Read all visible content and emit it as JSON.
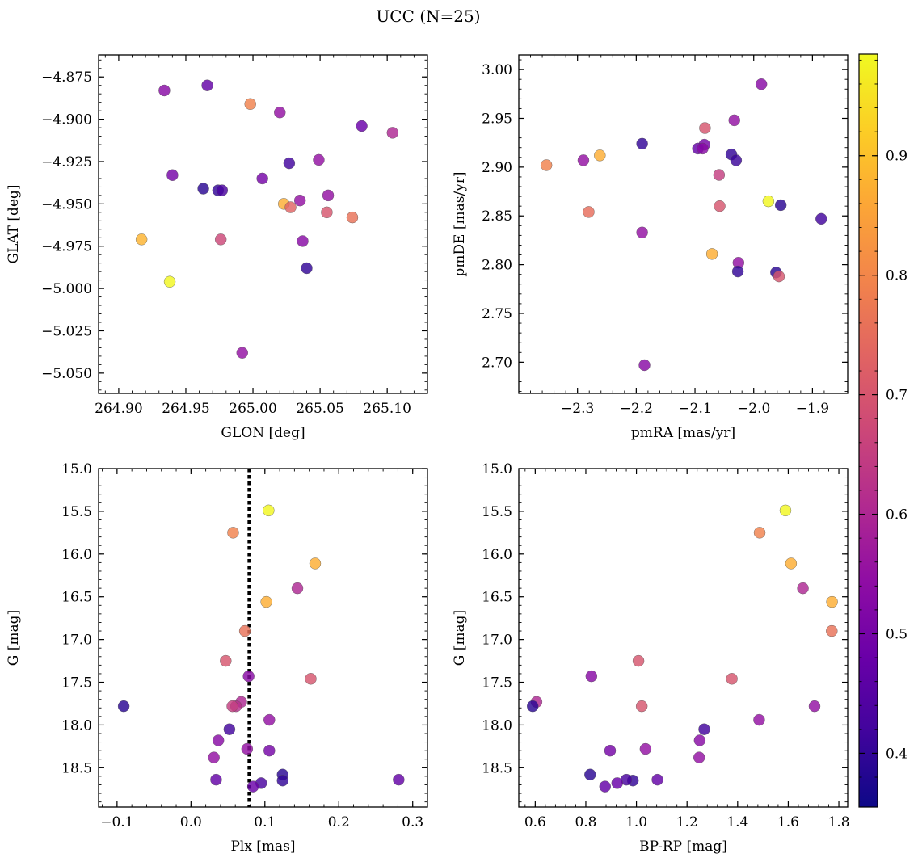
{
  "title": "UCC (N=25)",
  "colorbar": {
    "cmap": "plasma",
    "range": [
      0.355,
      0.985
    ],
    "ticks": [
      0.4,
      0.5,
      0.6,
      0.7,
      0.8,
      0.9
    ],
    "tick_labels": [
      "0.4",
      "0.5",
      "0.6",
      "0.7",
      "0.8",
      "0.9"
    ]
  },
  "chart_data": [
    {
      "type": "scatter",
      "xlabel": "GLON [deg]",
      "ylabel": "GLAT [deg]",
      "xlim": [
        264.885,
        265.13
      ],
      "ylim": [
        -5.062,
        -4.862
      ],
      "xticks": [
        264.9,
        264.95,
        265.0,
        265.05,
        265.1
      ],
      "xtick_labels": [
        "264.90",
        "264.95",
        "265.00",
        "265.05",
        "265.10"
      ],
      "yticks": [
        -4.875,
        -4.9,
        -4.925,
        -4.95,
        -4.975,
        -5.0,
        -5.025,
        -5.05
      ],
      "ytick_labels": [
        "−4.875",
        "−4.900",
        "−4.925",
        "−4.950",
        "−4.975",
        "−5.000",
        "−5.025",
        "−5.050"
      ],
      "points": [
        {
          "x": 264.934,
          "y": -4.883,
          "c": 0.53
        },
        {
          "x": 264.966,
          "y": -4.88,
          "c": 0.47
        },
        {
          "x": 264.998,
          "y": -4.891,
          "c": 0.79
        },
        {
          "x": 265.02,
          "y": -4.896,
          "c": 0.55
        },
        {
          "x": 265.081,
          "y": -4.904,
          "c": 0.48
        },
        {
          "x": 265.104,
          "y": -4.908,
          "c": 0.6
        },
        {
          "x": 264.94,
          "y": -4.933,
          "c": 0.5
        },
        {
          "x": 265.027,
          "y": -4.926,
          "c": 0.42
        },
        {
          "x": 265.049,
          "y": -4.924,
          "c": 0.55
        },
        {
          "x": 265.007,
          "y": -4.935,
          "c": 0.5
        },
        {
          "x": 264.963,
          "y": -4.941,
          "c": 0.39
        },
        {
          "x": 264.974,
          "y": -4.942,
          "c": 0.4
        },
        {
          "x": 264.977,
          "y": -4.942,
          "c": 0.43
        },
        {
          "x": 265.056,
          "y": -4.945,
          "c": 0.55
        },
        {
          "x": 265.035,
          "y": -4.948,
          "c": 0.55
        },
        {
          "x": 265.023,
          "y": -4.95,
          "c": 0.87
        },
        {
          "x": 265.028,
          "y": -4.952,
          "c": 0.73
        },
        {
          "x": 265.055,
          "y": -4.955,
          "c": 0.7
        },
        {
          "x": 265.074,
          "y": -4.958,
          "c": 0.76
        },
        {
          "x": 264.917,
          "y": -4.971,
          "c": 0.88
        },
        {
          "x": 264.976,
          "y": -4.971,
          "c": 0.67
        },
        {
          "x": 265.037,
          "y": -4.972,
          "c": 0.53
        },
        {
          "x": 265.04,
          "y": -4.988,
          "c": 0.4
        },
        {
          "x": 264.938,
          "y": -4.996,
          "c": 0.98
        },
        {
          "x": 264.992,
          "y": -5.038,
          "c": 0.55
        }
      ]
    },
    {
      "type": "scatter",
      "xlabel": "pmRA [mas/yr]",
      "ylabel": "pmDE [mas/yr]",
      "xlim": [
        -2.4,
        -1.84
      ],
      "ylim": [
        2.668,
        3.015
      ],
      "xticks": [
        -2.3,
        -2.2,
        -2.1,
        -2.0,
        -1.9
      ],
      "xtick_labels": [
        "−2.3",
        "−2.2",
        "−2.1",
        "−2.0",
        "−1.9"
      ],
      "yticks": [
        2.7,
        2.75,
        2.8,
        2.85,
        2.9,
        2.95,
        3.0
      ],
      "ytick_labels": [
        "2.70",
        "2.75",
        "2.80",
        "2.85",
        "2.90",
        "2.95",
        "3.00"
      ],
      "points": [
        {
          "x": -1.987,
          "y": 2.985,
          "c": 0.53
        },
        {
          "x": -2.033,
          "y": 2.948,
          "c": 0.55
        },
        {
          "x": -2.083,
          "y": 2.94,
          "c": 0.7
        },
        {
          "x": -2.19,
          "y": 2.924,
          "c": 0.4
        },
        {
          "x": -2.084,
          "y": 2.923,
          "c": 0.5
        },
        {
          "x": -2.095,
          "y": 2.919,
          "c": 0.47
        },
        {
          "x": -2.087,
          "y": 2.919,
          "c": 0.53
        },
        {
          "x": -2.038,
          "y": 2.913,
          "c": 0.4
        },
        {
          "x": -2.03,
          "y": 2.907,
          "c": 0.41
        },
        {
          "x": -2.262,
          "y": 2.912,
          "c": 0.87
        },
        {
          "x": -2.29,
          "y": 2.907,
          "c": 0.55
        },
        {
          "x": -2.353,
          "y": 2.902,
          "c": 0.79
        },
        {
          "x": -2.059,
          "y": 2.892,
          "c": 0.65
        },
        {
          "x": -1.975,
          "y": 2.865,
          "c": 0.98
        },
        {
          "x": -1.954,
          "y": 2.861,
          "c": 0.39
        },
        {
          "x": -2.058,
          "y": 2.86,
          "c": 0.7
        },
        {
          "x": -2.281,
          "y": 2.854,
          "c": 0.75
        },
        {
          "x": -1.885,
          "y": 2.847,
          "c": 0.42
        },
        {
          "x": -2.19,
          "y": 2.833,
          "c": 0.55
        },
        {
          "x": -2.071,
          "y": 2.811,
          "c": 0.87
        },
        {
          "x": -2.026,
          "y": 2.802,
          "c": 0.55
        },
        {
          "x": -2.027,
          "y": 2.793,
          "c": 0.4
        },
        {
          "x": -1.962,
          "y": 2.792,
          "c": 0.39
        },
        {
          "x": -1.957,
          "y": 2.788,
          "c": 0.7
        },
        {
          "x": -2.186,
          "y": 2.697,
          "c": 0.53
        }
      ]
    },
    {
      "type": "scatter",
      "xlabel": "Plx [mas]",
      "ylabel": "G [mag]",
      "xlim": [
        -0.125,
        0.32
      ],
      "ylim": [
        18.96,
        15.0
      ],
      "y_inverted": true,
      "xticks": [
        -0.1,
        0.0,
        0.1,
        0.2,
        0.3
      ],
      "xtick_labels": [
        "−0.1",
        "0.0",
        "0.1",
        "0.2",
        "0.3"
      ],
      "yticks": [
        15.0,
        15.5,
        16.0,
        16.5,
        17.0,
        17.5,
        18.0,
        18.5
      ],
      "ytick_labels": [
        "15.0",
        "15.5",
        "16.0",
        "16.5",
        "17.0",
        "17.5",
        "18.0",
        "18.5"
      ],
      "vline": {
        "x": 0.079,
        "style": "dotted"
      },
      "points": [
        {
          "x": 0.105,
          "y": 15.49,
          "c": 0.98
        },
        {
          "x": 0.057,
          "y": 15.75,
          "c": 0.79
        },
        {
          "x": 0.168,
          "y": 16.11,
          "c": 0.87
        },
        {
          "x": 0.144,
          "y": 16.4,
          "c": 0.6
        },
        {
          "x": 0.102,
          "y": 16.56,
          "c": 0.87
        },
        {
          "x": 0.073,
          "y": 16.9,
          "c": 0.76
        },
        {
          "x": 0.047,
          "y": 17.25,
          "c": 0.7
        },
        {
          "x": 0.162,
          "y": 17.46,
          "c": 0.7
        },
        {
          "x": 0.078,
          "y": 17.43,
          "c": 0.53
        },
        {
          "x": -0.091,
          "y": 17.78,
          "c": 0.39
        },
        {
          "x": 0.068,
          "y": 17.73,
          "c": 0.6
        },
        {
          "x": 0.061,
          "y": 17.78,
          "c": 0.62
        },
        {
          "x": 0.056,
          "y": 17.78,
          "c": 0.65
        },
        {
          "x": 0.106,
          "y": 17.94,
          "c": 0.55
        },
        {
          "x": 0.052,
          "y": 18.05,
          "c": 0.42
        },
        {
          "x": 0.037,
          "y": 18.18,
          "c": 0.53
        },
        {
          "x": 0.106,
          "y": 18.3,
          "c": 0.5
        },
        {
          "x": 0.076,
          "y": 18.28,
          "c": 0.55
        },
        {
          "x": 0.031,
          "y": 18.38,
          "c": 0.55
        },
        {
          "x": 0.124,
          "y": 18.58,
          "c": 0.39
        },
        {
          "x": 0.124,
          "y": 18.65,
          "c": 0.4
        },
        {
          "x": 0.034,
          "y": 18.64,
          "c": 0.47
        },
        {
          "x": 0.095,
          "y": 18.68,
          "c": 0.43
        },
        {
          "x": 0.084,
          "y": 18.72,
          "c": 0.48
        },
        {
          "x": 0.281,
          "y": 18.64,
          "c": 0.47
        }
      ]
    },
    {
      "type": "scatter",
      "xlabel": "BP-RP [mag]",
      "ylabel": "G [mag]",
      "xlim": [
        0.535,
        1.835
      ],
      "ylim": [
        18.96,
        15.0
      ],
      "y_inverted": true,
      "xticks": [
        0.6,
        0.8,
        1.0,
        1.2,
        1.4,
        1.6,
        1.8
      ],
      "xtick_labels": [
        "0.6",
        "0.8",
        "1.0",
        "1.2",
        "1.4",
        "1.6",
        "1.8"
      ],
      "yticks": [
        15.0,
        15.5,
        16.0,
        16.5,
        17.0,
        17.5,
        18.0,
        18.5
      ],
      "ytick_labels": [
        "15.0",
        "15.5",
        "16.0",
        "16.5",
        "17.0",
        "17.5",
        "18.0",
        "18.5"
      ],
      "points": [
        {
          "x": 1.589,
          "y": 15.49,
          "c": 0.98
        },
        {
          "x": 1.487,
          "y": 15.75,
          "c": 0.79
        },
        {
          "x": 1.611,
          "y": 16.11,
          "c": 0.87
        },
        {
          "x": 1.658,
          "y": 16.4,
          "c": 0.6
        },
        {
          "x": 1.773,
          "y": 16.56,
          "c": 0.87
        },
        {
          "x": 1.772,
          "y": 16.9,
          "c": 0.76
        },
        {
          "x": 1.008,
          "y": 17.25,
          "c": 0.7
        },
        {
          "x": 1.377,
          "y": 17.46,
          "c": 0.7
        },
        {
          "x": 0.822,
          "y": 17.43,
          "c": 0.53
        },
        {
          "x": 0.605,
          "y": 17.73,
          "c": 0.6
        },
        {
          "x": 0.59,
          "y": 17.78,
          "c": 0.39
        },
        {
          "x": 1.021,
          "y": 17.78,
          "c": 0.7
        },
        {
          "x": 1.704,
          "y": 17.78,
          "c": 0.55
        },
        {
          "x": 1.485,
          "y": 17.94,
          "c": 0.55
        },
        {
          "x": 1.268,
          "y": 18.05,
          "c": 0.42
        },
        {
          "x": 1.25,
          "y": 18.18,
          "c": 0.53
        },
        {
          "x": 0.896,
          "y": 18.3,
          "c": 0.5
        },
        {
          "x": 1.036,
          "y": 18.28,
          "c": 0.55
        },
        {
          "x": 1.248,
          "y": 18.38,
          "c": 0.55
        },
        {
          "x": 0.817,
          "y": 18.58,
          "c": 0.39
        },
        {
          "x": 0.986,
          "y": 18.65,
          "c": 0.4
        },
        {
          "x": 1.083,
          "y": 18.64,
          "c": 0.47
        },
        {
          "x": 0.96,
          "y": 18.64,
          "c": 0.43
        },
        {
          "x": 0.924,
          "y": 18.68,
          "c": 0.48
        },
        {
          "x": 0.876,
          "y": 18.72,
          "c": 0.47
        }
      ]
    }
  ]
}
